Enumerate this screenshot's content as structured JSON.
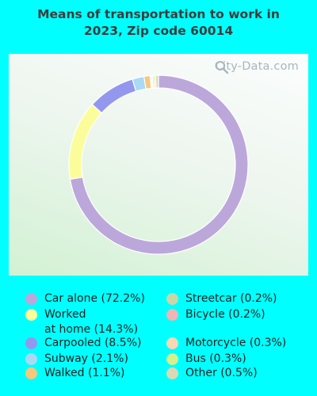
{
  "title": [
    "Means of transportation to work in",
    "2023, Zip code 60014"
  ],
  "watermark": "City-Data.com",
  "chart_data": {
    "type": "pie",
    "donut": true,
    "unit": "%",
    "slices": [
      {
        "label": "Car alone (72.2%)",
        "value": 72.2,
        "color": "#bca7da"
      },
      {
        "label": "Worked\nat home (14.3%)",
        "value": 14.3,
        "color": "#fbfd9a"
      },
      {
        "label": "Carpooled (8.5%)",
        "value": 8.5,
        "color": "#9398ee"
      },
      {
        "label": "Subway (2.1%)",
        "value": 2.1,
        "color": "#a9d9f5"
      },
      {
        "label": "Walked (1.1%)",
        "value": 1.1,
        "color": "#f7c77a"
      },
      {
        "label": "Streetcar (0.2%)",
        "value": 0.2,
        "color": "#c9d6a8"
      },
      {
        "label": "Bicycle (0.2%)",
        "value": 0.2,
        "color": "#f2b3b3"
      },
      {
        "label": "Motorcycle (0.3%)",
        "value": 0.3,
        "color": "#f8d7b2"
      },
      {
        "label": "Bus (0.3%)",
        "value": 0.3,
        "color": "#d5f08c"
      },
      {
        "label": "Other (0.5%)",
        "value": 0.5,
        "color": "#dcd8b4"
      }
    ],
    "legend_position": "bottom"
  }
}
